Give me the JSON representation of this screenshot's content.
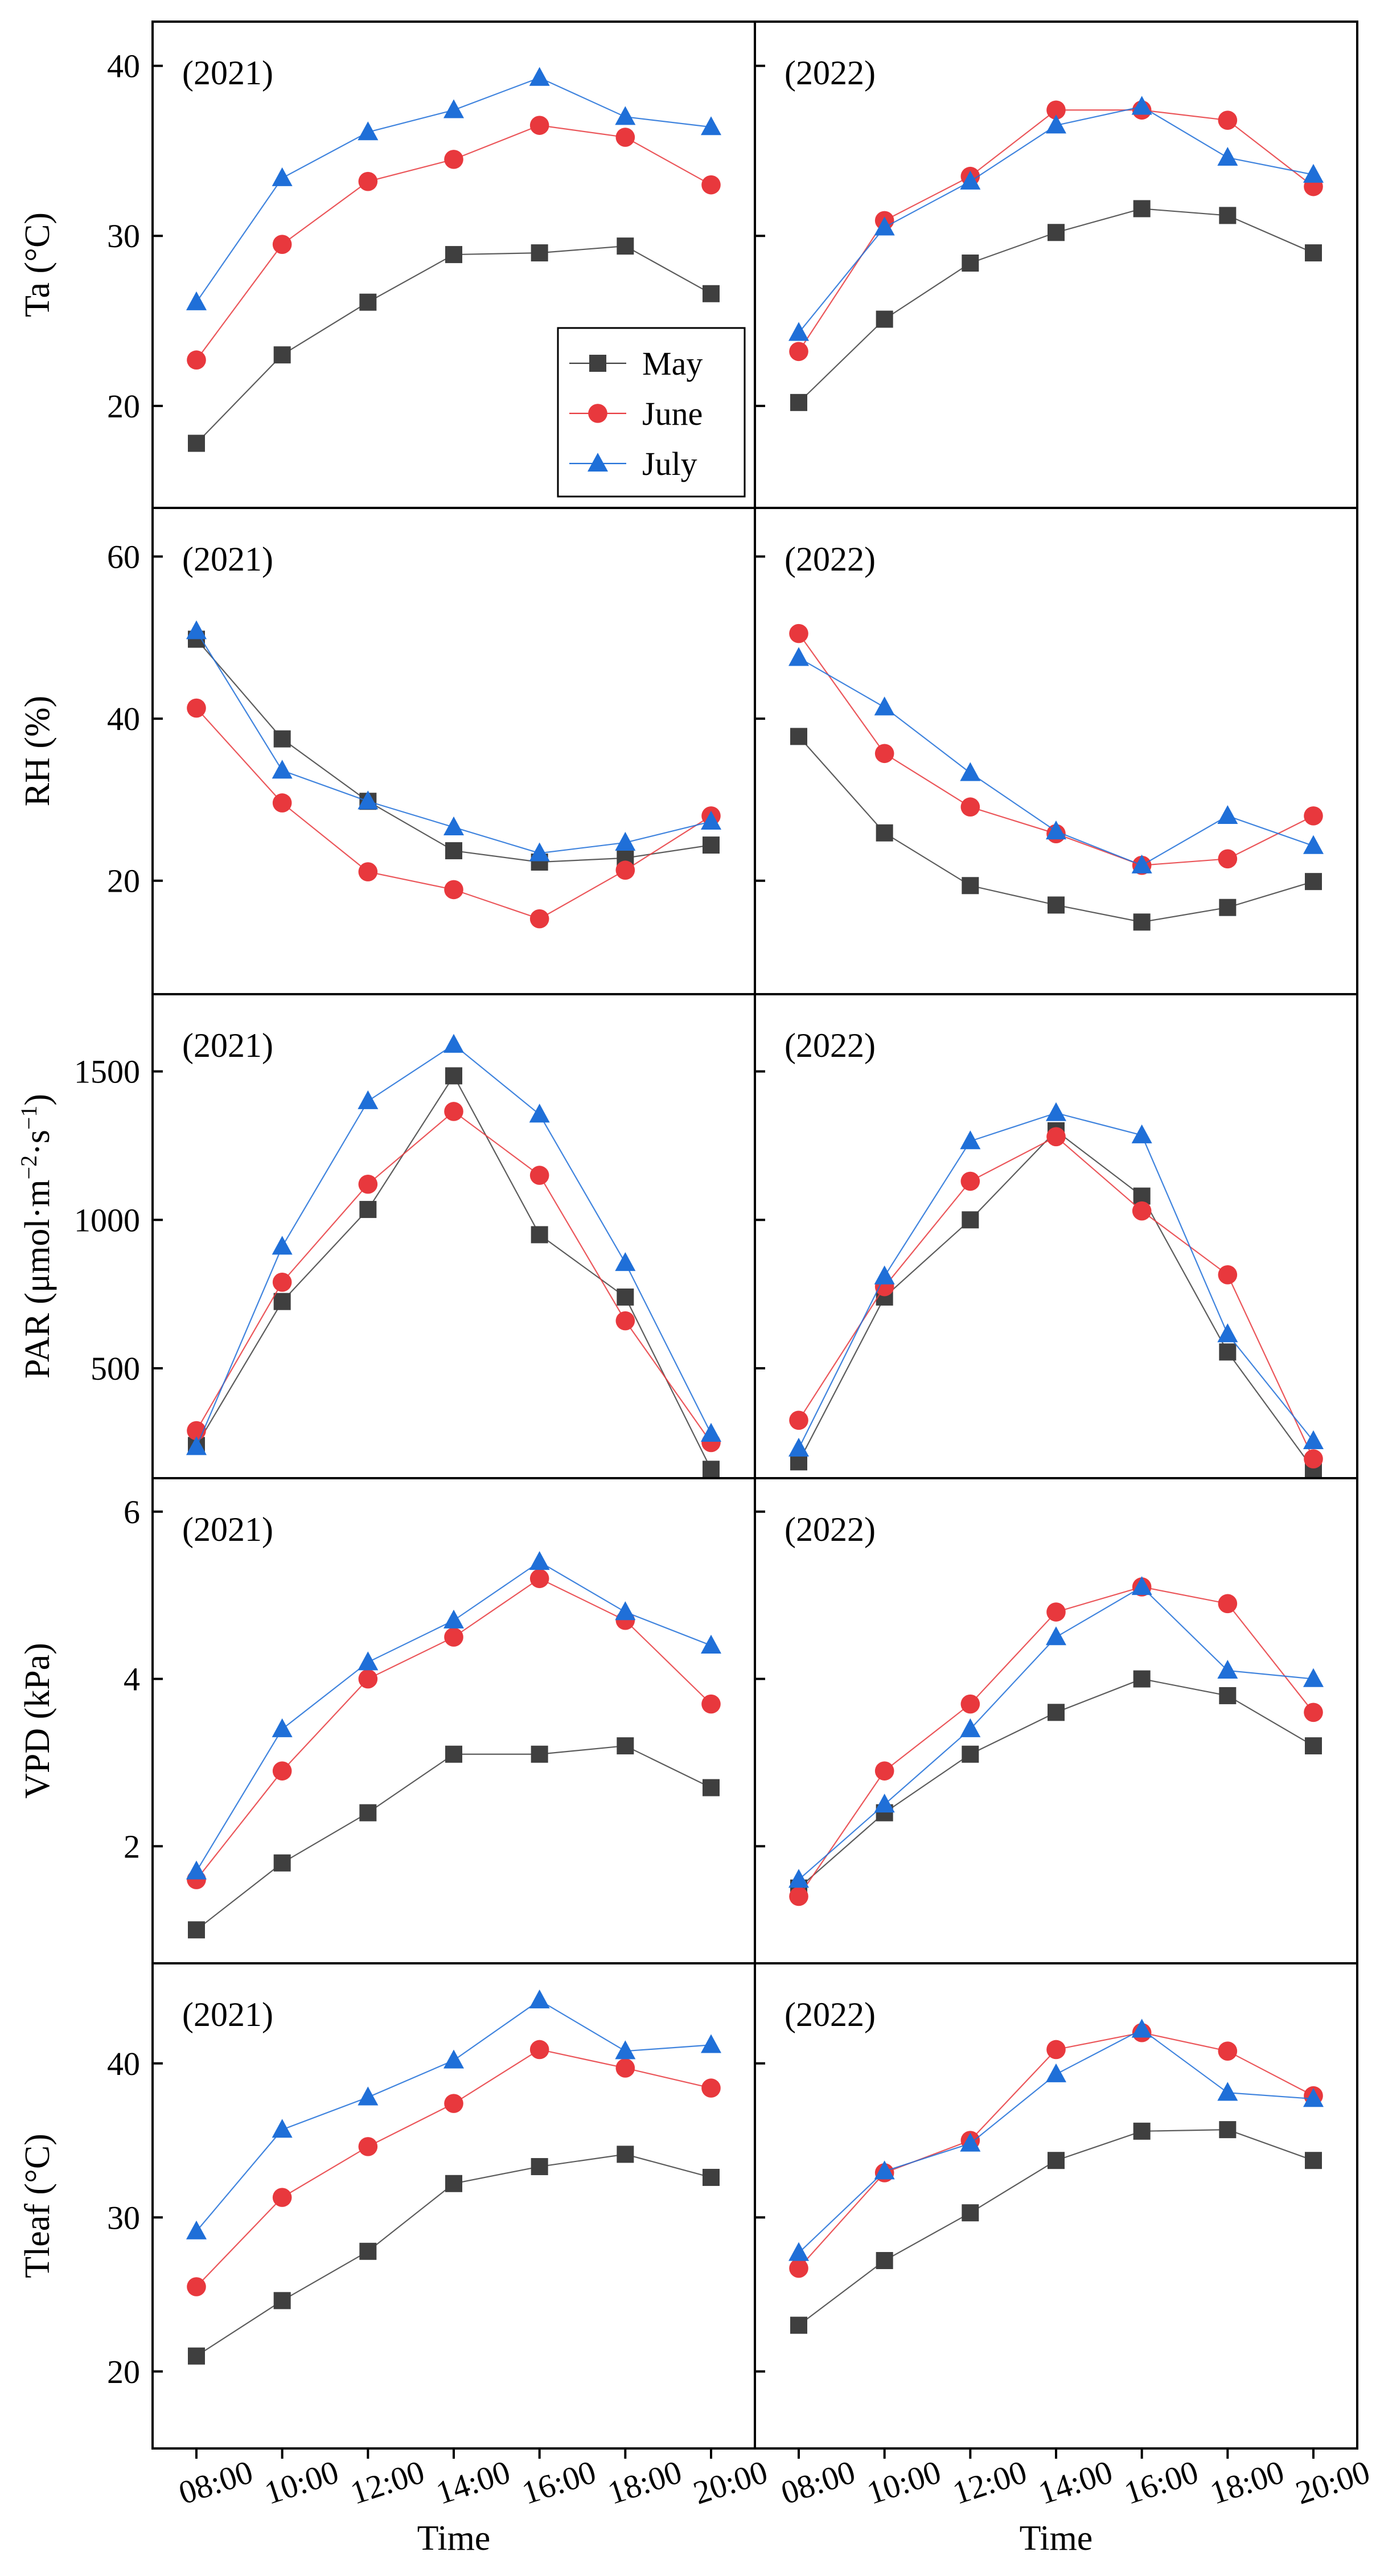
{
  "chart_data": {
    "type": "line",
    "layout": "5 rows x 2 columns, shared x axis per column, shared y axis per row",
    "x_ticks": [
      "08:00",
      "10:00",
      "12:00",
      "14:00",
      "16:00",
      "18:00",
      "20:00"
    ],
    "x_title": "Time",
    "legend": {
      "placement": "inside top-left panel, lower-right",
      "entries": [
        {
          "name": "May",
          "marker": "square",
          "color": "#3f3f3f"
        },
        {
          "name": "June",
          "marker": "circle",
          "color": "#e8383d"
        },
        {
          "name": "July",
          "marker": "triangle",
          "color": "#1f6fd8"
        }
      ]
    },
    "rows": [
      {
        "variable": "Ta",
        "y_title": "Ta (°C)",
        "y_title_parts": [
          "Ta (°C)"
        ],
        "ylim": [
          14,
          42.6
        ],
        "y_ticks": [
          20,
          30,
          40
        ],
        "panels": [
          {
            "label": "(2021)",
            "series": {
              "May": [
                17.8,
                23.0,
                26.1,
                28.9,
                29.0,
                29.4,
                26.6
              ],
              "June": [
                22.7,
                29.5,
                33.2,
                34.5,
                36.5,
                35.8,
                33.0
              ],
              "July": [
                26.1,
                33.4,
                36.1,
                37.4,
                39.3,
                37.0,
                36.4
              ]
            }
          },
          {
            "label": "(2022)",
            "series": {
              "May": [
                20.2,
                25.1,
                28.4,
                30.2,
                31.6,
                31.2,
                29.0
              ],
              "June": [
                23.2,
                30.9,
                33.5,
                37.4,
                37.4,
                36.8,
                32.9
              ],
              "July": [
                24.3,
                30.5,
                33.2,
                36.5,
                37.6,
                34.6,
                33.6
              ]
            }
          }
        ]
      },
      {
        "variable": "RH",
        "y_title": "RH (%)",
        "y_title_parts": [
          "RH (%)"
        ],
        "ylim": [
          6,
          66
        ],
        "y_ticks": [
          20,
          40,
          60
        ],
        "panels": [
          {
            "label": "(2021)",
            "series": {
              "May": [
                49.8,
                37.5,
                29.8,
                23.7,
                22.3,
                22.8,
                24.4
              ],
              "June": [
                41.3,
                29.6,
                21.1,
                18.9,
                15.3,
                21.3,
                28.0
              ],
              "July": [
                50.8,
                33.6,
                29.8,
                26.6,
                23.4,
                24.7,
                27.3
              ]
            }
          },
          {
            "label": "(2022)",
            "series": {
              "May": [
                37.8,
                25.9,
                19.4,
                17.0,
                14.9,
                16.7,
                19.9
              ],
              "June": [
                50.5,
                35.7,
                29.1,
                25.8,
                21.9,
                22.7,
                28.0
              ],
              "July": [
                47.5,
                41.4,
                33.3,
                26.1,
                21.9,
                28.0,
                24.3
              ]
            }
          }
        ]
      },
      {
        "variable": "PAR",
        "y_title": "PAR (μmol·m⁻²·s⁻¹)",
        "y_title_parts": [
          "PAR (μmol·m",
          "−2",
          "·s",
          "−1",
          ")"
        ],
        "ylim": [
          130,
          1760
        ],
        "y_ticks": [
          500,
          1000,
          1500
        ],
        "panels": [
          {
            "label": "(2021)",
            "series": {
              "May": [
                240,
                725,
                1035,
                1485,
                950,
                740,
                160
              ],
              "June": [
                290,
                790,
                1120,
                1365,
                1150,
                660,
                250
              ],
              "July": [
                235,
                910,
                1400,
                1590,
                1355,
                855,
                280
              ]
            }
          },
          {
            "label": "(2022)",
            "series": {
              "May": [
                185,
                740,
                1000,
                1300,
                1080,
                555,
                160
              ],
              "June": [
                325,
                775,
                1130,
                1280,
                1030,
                815,
                195
              ],
              "July": [
                230,
                810,
                1265,
                1360,
                1285,
                615,
                255
              ]
            }
          }
        ]
      },
      {
        "variable": "VPD",
        "y_title": "VPD (kPa)",
        "y_title_parts": [
          "VPD (kPa)"
        ],
        "ylim": [
          0.6,
          6.4
        ],
        "y_ticks": [
          2,
          4,
          6
        ],
        "panels": [
          {
            "label": "(2021)",
            "series": {
              "May": [
                1.0,
                1.8,
                2.4,
                3.1,
                3.1,
                3.2,
                2.7
              ],
              "June": [
                1.6,
                2.9,
                4.0,
                4.5,
                5.2,
                4.7,
                3.7
              ],
              "July": [
                1.7,
                3.4,
                4.2,
                4.7,
                5.4,
                4.8,
                4.4
              ]
            }
          },
          {
            "label": "(2022)",
            "series": {
              "May": [
                1.5,
                2.4,
                3.1,
                3.6,
                4.0,
                3.8,
                3.2
              ],
              "June": [
                1.4,
                2.9,
                3.7,
                4.8,
                5.1,
                4.9,
                3.6
              ],
              "July": [
                1.6,
                2.5,
                3.4,
                4.5,
                5.1,
                4.1,
                4.0
              ]
            }
          }
        ]
      },
      {
        "variable": "Tleaf",
        "y_title": "Tleaf (°C)",
        "y_title_parts": [
          "Tleaf (°C)"
        ],
        "ylim": [
          15,
          46.5
        ],
        "y_ticks": [
          20,
          30,
          40
        ],
        "panels": [
          {
            "label": "(2021)",
            "series": {
              "May": [
                21.0,
                24.6,
                27.8,
                32.2,
                33.3,
                34.1,
                32.6
              ],
              "June": [
                25.5,
                31.3,
                34.6,
                37.4,
                40.9,
                39.7,
                38.4
              ],
              "July": [
                29.1,
                35.7,
                37.8,
                40.2,
                44.1,
                40.8,
                41.2
              ]
            }
          },
          {
            "label": "(2022)",
            "series": {
              "May": [
                23.0,
                27.2,
                30.3,
                33.7,
                35.6,
                35.7,
                33.7
              ],
              "June": [
                26.7,
                32.9,
                35.0,
                40.9,
                42.0,
                40.8,
                37.9
              ],
              "July": [
                27.7,
                33.0,
                34.8,
                39.3,
                42.2,
                38.1,
                37.7
              ]
            }
          }
        ]
      }
    ]
  }
}
